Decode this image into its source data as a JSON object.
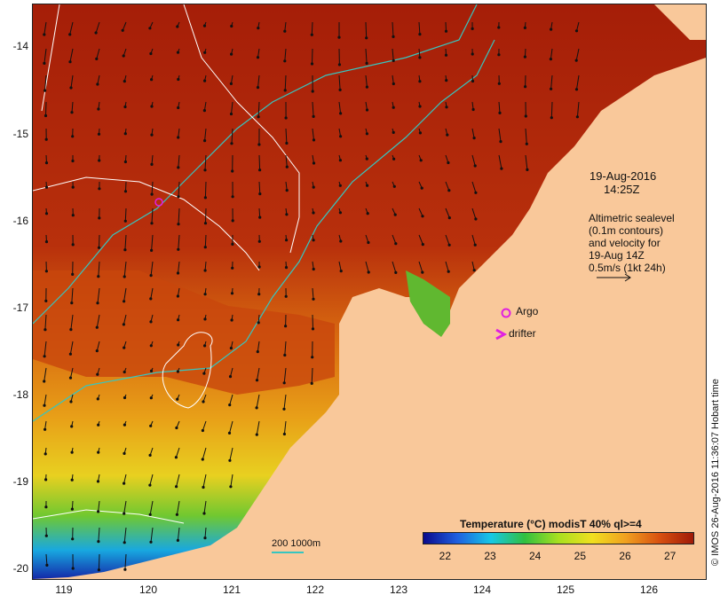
{
  "map": {
    "y_ticks": [
      "-14",
      "-15",
      "-16",
      "-17",
      "-18",
      "-19",
      "-20"
    ],
    "x_ticks": [
      "119",
      "120",
      "121",
      "122",
      "123",
      "124",
      "125",
      "126"
    ],
    "lat_range": [
      -20.1,
      -13.6
    ],
    "lon_range": [
      118.65,
      126.65
    ]
  },
  "annotations": {
    "date": "19-Aug-2016",
    "time": "14:25Z",
    "altimetry_lines": [
      "Altimetric sealevel",
      "(0.1m contours)",
      "and velocity for",
      "19-Aug 14Z",
      "0.5m/s (1kt 24h)"
    ],
    "argo_label": "Argo",
    "drifter_label": "drifter"
  },
  "colorbar": {
    "title": "Temperature (°C) modisT 40% ql>=4",
    "ticks": [
      "22",
      "23",
      "24",
      "25",
      "26",
      "27"
    ],
    "range": [
      21.5,
      27.5
    ],
    "colors": [
      "#0a0a8c",
      "#1f5fe0",
      "#16c8e6",
      "#30c040",
      "#a8e020",
      "#f0e020",
      "#f0a020",
      "#d85010",
      "#a01a08"
    ]
  },
  "scale_bar": {
    "label": "200  1000m"
  },
  "credit": "© IMOS 26-Aug-2016 11:36:07 Hobart time",
  "colors": {
    "land": "#f9c89a",
    "warm_sea": "#a8200a",
    "contour": "#ffffff",
    "isobath": "#36c6c0",
    "argo": "#e020e0"
  }
}
